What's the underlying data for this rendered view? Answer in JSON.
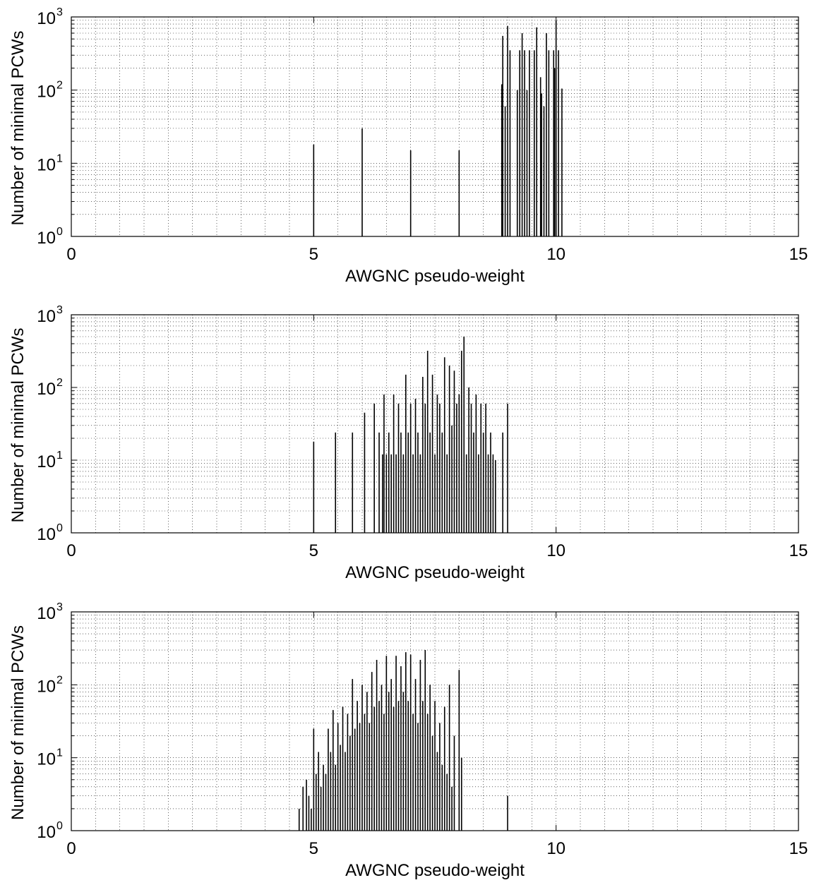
{
  "chart_data": [
    {
      "type": "bar",
      "xlabel": "AWGNC pseudo-weight",
      "ylabel": "Number of minimal PCWs",
      "xlim": [
        0,
        15
      ],
      "ylim": [
        1,
        1000
      ],
      "yscale": "log",
      "grid": true,
      "x_ticks": [
        "0",
        "5",
        "10",
        "15"
      ],
      "y_ticks": [
        {
          "base": "10",
          "exp": "0"
        },
        {
          "base": "10",
          "exp": "1"
        },
        {
          "base": "10",
          "exp": "2"
        },
        {
          "base": "10",
          "exp": "3"
        }
      ],
      "points": [
        {
          "x": 5.0,
          "y": 18
        },
        {
          "x": 6.0,
          "y": 30
        },
        {
          "x": 7.0,
          "y": 15
        },
        {
          "x": 8.0,
          "y": 15
        },
        {
          "x": 8.88,
          "y": 120
        },
        {
          "x": 8.9,
          "y": 550
        },
        {
          "x": 8.95,
          "y": 60
        },
        {
          "x": 9.0,
          "y": 750
        },
        {
          "x": 9.05,
          "y": 350
        },
        {
          "x": 9.2,
          "y": 100
        },
        {
          "x": 9.25,
          "y": 350
        },
        {
          "x": 9.3,
          "y": 600
        },
        {
          "x": 9.35,
          "y": 350
        },
        {
          "x": 9.4,
          "y": 100
        },
        {
          "x": 9.45,
          "y": 350
        },
        {
          "x": 9.55,
          "y": 350
        },
        {
          "x": 9.6,
          "y": 720
        },
        {
          "x": 9.68,
          "y": 150
        },
        {
          "x": 9.7,
          "y": 90
        },
        {
          "x": 9.75,
          "y": 60
        },
        {
          "x": 9.8,
          "y": 600
        },
        {
          "x": 9.85,
          "y": 350
        },
        {
          "x": 9.95,
          "y": 350
        },
        {
          "x": 9.97,
          "y": 200
        },
        {
          "x": 10.0,
          "y": 900
        },
        {
          "x": 10.05,
          "y": 350
        },
        {
          "x": 10.12,
          "y": 105
        }
      ]
    },
    {
      "type": "bar",
      "xlabel": "AWGNC pseudo-weight",
      "ylabel": "Number of minimal PCWs",
      "xlim": [
        0,
        15
      ],
      "ylim": [
        1,
        1000
      ],
      "yscale": "log",
      "grid": true,
      "x_ticks": [
        "0",
        "5",
        "10",
        "15"
      ],
      "y_ticks": [
        {
          "base": "10",
          "exp": "0"
        },
        {
          "base": "10",
          "exp": "1"
        },
        {
          "base": "10",
          "exp": "2"
        },
        {
          "base": "10",
          "exp": "3"
        }
      ],
      "points": [
        {
          "x": 5.0,
          "y": 18
        },
        {
          "x": 5.45,
          "y": 24
        },
        {
          "x": 5.8,
          "y": 24
        },
        {
          "x": 6.05,
          "y": 45
        },
        {
          "x": 6.25,
          "y": 60
        },
        {
          "x": 6.35,
          "y": 24
        },
        {
          "x": 6.42,
          "y": 12
        },
        {
          "x": 6.45,
          "y": 80
        },
        {
          "x": 6.5,
          "y": 12
        },
        {
          "x": 6.55,
          "y": 24
        },
        {
          "x": 6.6,
          "y": 12
        },
        {
          "x": 6.65,
          "y": 80
        },
        {
          "x": 6.7,
          "y": 12
        },
        {
          "x": 6.75,
          "y": 60
        },
        {
          "x": 6.8,
          "y": 24
        },
        {
          "x": 6.85,
          "y": 12
        },
        {
          "x": 6.9,
          "y": 150
        },
        {
          "x": 6.95,
          "y": 24
        },
        {
          "x": 7.0,
          "y": 60
        },
        {
          "x": 7.05,
          "y": 12
        },
        {
          "x": 7.1,
          "y": 70
        },
        {
          "x": 7.15,
          "y": 24
        },
        {
          "x": 7.2,
          "y": 12
        },
        {
          "x": 7.25,
          "y": 140
        },
        {
          "x": 7.3,
          "y": 60
        },
        {
          "x": 7.35,
          "y": 320
        },
        {
          "x": 7.4,
          "y": 24
        },
        {
          "x": 7.45,
          "y": 150
        },
        {
          "x": 7.5,
          "y": 12
        },
        {
          "x": 7.55,
          "y": 80
        },
        {
          "x": 7.6,
          "y": 60
        },
        {
          "x": 7.65,
          "y": 24
        },
        {
          "x": 7.7,
          "y": 260
        },
        {
          "x": 7.75,
          "y": 12
        },
        {
          "x": 7.8,
          "y": 200
        },
        {
          "x": 7.85,
          "y": 30
        },
        {
          "x": 7.9,
          "y": 170
        },
        {
          "x": 7.95,
          "y": 60
        },
        {
          "x": 8.0,
          "y": 80
        },
        {
          "x": 8.05,
          "y": 320
        },
        {
          "x": 8.1,
          "y": 500
        },
        {
          "x": 8.15,
          "y": 12
        },
        {
          "x": 8.2,
          "y": 100
        },
        {
          "x": 8.25,
          "y": 60
        },
        {
          "x": 8.3,
          "y": 24
        },
        {
          "x": 8.35,
          "y": 80
        },
        {
          "x": 8.4,
          "y": 12
        },
        {
          "x": 8.45,
          "y": 60
        },
        {
          "x": 8.5,
          "y": 24
        },
        {
          "x": 8.55,
          "y": 60
        },
        {
          "x": 8.6,
          "y": 12
        },
        {
          "x": 8.65,
          "y": 24
        },
        {
          "x": 8.7,
          "y": 12
        },
        {
          "x": 8.75,
          "y": 10
        },
        {
          "x": 8.9,
          "y": 24
        },
        {
          "x": 9.0,
          "y": 60
        }
      ]
    },
    {
      "type": "bar",
      "xlabel": "AWGNC pseudo-weight",
      "ylabel": "Number of minimal PCWs",
      "xlim": [
        0,
        15
      ],
      "ylim": [
        1,
        1000
      ],
      "yscale": "log",
      "grid": true,
      "x_ticks": [
        "0",
        "5",
        "10",
        "15"
      ],
      "y_ticks": [
        {
          "base": "10",
          "exp": "0"
        },
        {
          "base": "10",
          "exp": "1"
        },
        {
          "base": "10",
          "exp": "2"
        },
        {
          "base": "10",
          "exp": "3"
        }
      ],
      "points": [
        {
          "x": 4.7,
          "y": 2
        },
        {
          "x": 4.78,
          "y": 4
        },
        {
          "x": 4.85,
          "y": 5
        },
        {
          "x": 4.9,
          "y": 3
        },
        {
          "x": 4.95,
          "y": 2
        },
        {
          "x": 5.0,
          "y": 25
        },
        {
          "x": 5.05,
          "y": 6
        },
        {
          "x": 5.1,
          "y": 12
        },
        {
          "x": 5.15,
          "y": 4
        },
        {
          "x": 5.2,
          "y": 8
        },
        {
          "x": 5.25,
          "y": 6
        },
        {
          "x": 5.3,
          "y": 25
        },
        {
          "x": 5.35,
          "y": 12
        },
        {
          "x": 5.4,
          "y": 45
        },
        {
          "x": 5.45,
          "y": 8
        },
        {
          "x": 5.5,
          "y": 30
        },
        {
          "x": 5.55,
          "y": 15
        },
        {
          "x": 5.6,
          "y": 50
        },
        {
          "x": 5.65,
          "y": 12
        },
        {
          "x": 5.7,
          "y": 40
        },
        {
          "x": 5.75,
          "y": 20
        },
        {
          "x": 5.8,
          "y": 120
        },
        {
          "x": 5.85,
          "y": 25
        },
        {
          "x": 5.9,
          "y": 60
        },
        {
          "x": 5.95,
          "y": 30
        },
        {
          "x": 6.0,
          "y": 100
        },
        {
          "x": 6.05,
          "y": 40
        },
        {
          "x": 6.1,
          "y": 80
        },
        {
          "x": 6.15,
          "y": 30
        },
        {
          "x": 6.2,
          "y": 150
        },
        {
          "x": 6.25,
          "y": 50
        },
        {
          "x": 6.3,
          "y": 220
        },
        {
          "x": 6.35,
          "y": 60
        },
        {
          "x": 6.4,
          "y": 100
        },
        {
          "x": 6.45,
          "y": 40
        },
        {
          "x": 6.5,
          "y": 250
        },
        {
          "x": 6.55,
          "y": 80
        },
        {
          "x": 6.6,
          "y": 120
        },
        {
          "x": 6.65,
          "y": 50
        },
        {
          "x": 6.7,
          "y": 250
        },
        {
          "x": 6.75,
          "y": 60
        },
        {
          "x": 6.8,
          "y": 180
        },
        {
          "x": 6.85,
          "y": 80
        },
        {
          "x": 6.9,
          "y": 280
        },
        {
          "x": 6.95,
          "y": 60
        },
        {
          "x": 7.0,
          "y": 260
        },
        {
          "x": 7.05,
          "y": 40
        },
        {
          "x": 7.1,
          "y": 120
        },
        {
          "x": 7.15,
          "y": 30
        },
        {
          "x": 7.2,
          "y": 220
        },
        {
          "x": 7.25,
          "y": 60
        },
        {
          "x": 7.3,
          "y": 300
        },
        {
          "x": 7.35,
          "y": 40
        },
        {
          "x": 7.4,
          "y": 100
        },
        {
          "x": 7.45,
          "y": 20
        },
        {
          "x": 7.5,
          "y": 60
        },
        {
          "x": 7.55,
          "y": 12
        },
        {
          "x": 7.6,
          "y": 30
        },
        {
          "x": 7.65,
          "y": 8
        },
        {
          "x": 7.7,
          "y": 50
        },
        {
          "x": 7.75,
          "y": 6
        },
        {
          "x": 7.8,
          "y": 100
        },
        {
          "x": 7.85,
          "y": 4
        },
        {
          "x": 7.9,
          "y": 20
        },
        {
          "x": 8.0,
          "y": 160
        },
        {
          "x": 8.05,
          "y": 10
        },
        {
          "x": 9.0,
          "y": 3
        }
      ]
    }
  ]
}
